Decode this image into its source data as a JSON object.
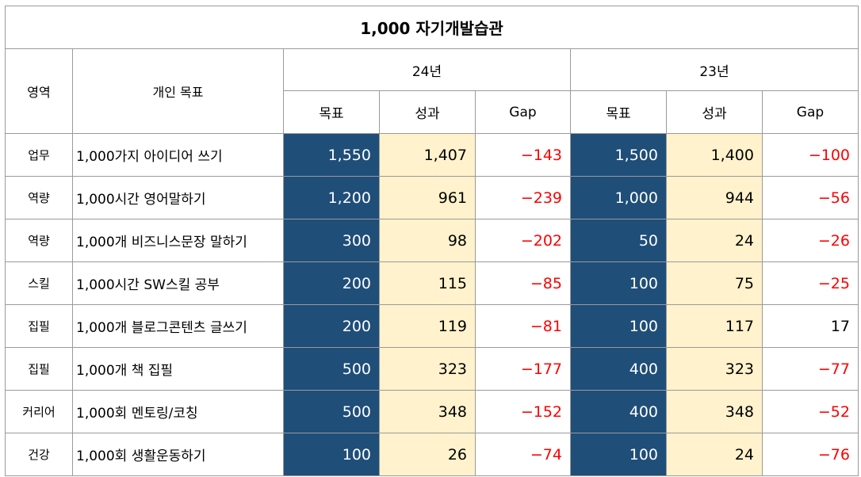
{
  "title": "1,000 자기개발습관",
  "headers": {
    "area": "영역",
    "goal": "개인 목표",
    "year_24": "24년",
    "year_23": "23년",
    "target": "목표",
    "result": "성과",
    "gap": "Gap"
  },
  "rows": [
    {
      "area": "업무",
      "goal": "1,000가지 아이디어 쓰기",
      "t24": "1,550",
      "r24": "1,407",
      "g24": "−143",
      "t23": "1,500",
      "r23": "1,400",
      "g23": "−100"
    },
    {
      "area": "역량",
      "goal": "1,000시간 영어말하기",
      "t24": "1,200",
      "r24": "961",
      "g24": "−239",
      "t23": "1,000",
      "r23": "944",
      "g23": "−56"
    },
    {
      "area": "역량",
      "goal": "1,000개 비즈니스문장 말하기",
      "t24": "300",
      "r24": "98",
      "g24": "−202",
      "t23": "50",
      "r23": "24",
      "g23": "−26"
    },
    {
      "area": "스킬",
      "goal": "1,000시간 SW스킬 공부",
      "t24": "200",
      "r24": "115",
      "g24": "−85",
      "t23": "100",
      "r23": "75",
      "g23": "−25"
    },
    {
      "area": "집필",
      "goal": "1,000개 블로그콘텐츠 글쓰기",
      "t24": "200",
      "r24": "119",
      "g24": "−81",
      "t23": "100",
      "r23": "117",
      "g23": "17"
    },
    {
      "area": "집필",
      "goal": "1,000개 책 집필",
      "t24": "500",
      "r24": "323",
      "g24": "−177",
      "t23": "400",
      "r23": "323",
      "g23": "−77"
    },
    {
      "area": "커리어",
      "goal": "1,000회 멘토링/코칭",
      "t24": "500",
      "r24": "348",
      "g24": "−152",
      "t23": "400",
      "r23": "348",
      "g23": "−52"
    },
    {
      "area": "건강",
      "goal": "1,000회 생활운동하기",
      "t24": "100",
      "r24": "26",
      "g24": "−74",
      "t23": "100",
      "r23": "24",
      "g23": "−76"
    }
  ],
  "colors": {
    "target_fill": "#1f4e79",
    "result_fill": "#fff2cc",
    "negative_text": "#ff0000"
  }
}
